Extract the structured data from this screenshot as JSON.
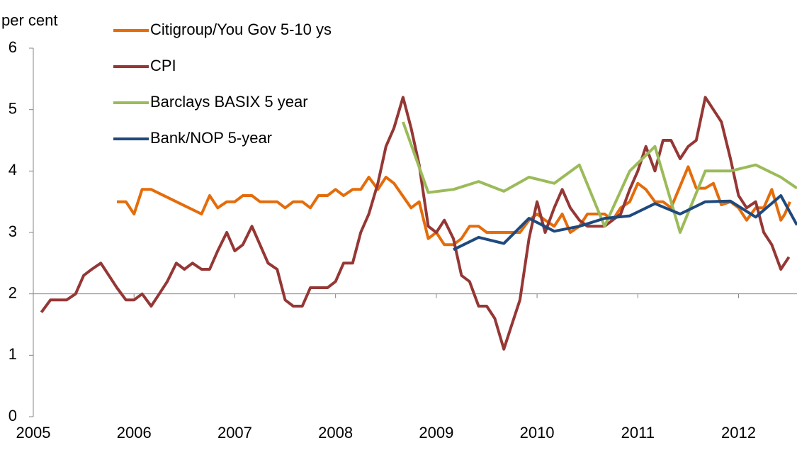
{
  "chart_data": {
    "type": "line",
    "y_label": "per cent",
    "xlim": [
      2005,
      2012.58
    ],
    "xticks": [
      2005,
      2006,
      2007,
      2008,
      2009,
      2010,
      2011,
      2012
    ],
    "ylim": [
      0,
      6
    ],
    "yticks": [
      0,
      1,
      2,
      3,
      4,
      5,
      6
    ],
    "x_axis_crosses": 2,
    "series": [
      {
        "name": "Citigroup/You Gov 5-10 ys",
        "color": "#e46c0a",
        "x": [
          2005.83,
          2005.92,
          2006.0,
          2006.08,
          2006.17,
          2006.67,
          2006.75,
          2006.83,
          2006.92,
          2007.0,
          2007.08,
          2007.17,
          2007.25,
          2007.33,
          2007.42,
          2007.5,
          2007.58,
          2007.67,
          2007.75,
          2007.83,
          2007.92,
          2008.0,
          2008.08,
          2008.17,
          2008.25,
          2008.33,
          2008.42,
          2008.5,
          2008.58,
          2008.75,
          2008.83,
          2008.92,
          2009.0,
          2009.08,
          2009.17,
          2009.25,
          2009.33,
          2009.42,
          2009.5,
          2009.83,
          2009.92,
          2010.0,
          2010.08,
          2010.17,
          2010.25,
          2010.33,
          2010.42,
          2010.5,
          2010.67,
          2010.75,
          2010.83,
          2010.92,
          2011.0,
          2011.08,
          2011.17,
          2011.25,
          2011.33,
          2011.5,
          2011.58,
          2011.67,
          2011.75,
          2011.83,
          2011.92,
          2012.0,
          2012.08,
          2012.17,
          2012.25,
          2012.33,
          2012.42,
          2012.46,
          2012.51
        ],
        "values": [
          3.5,
          3.5,
          3.3,
          3.7,
          3.7,
          3.3,
          3.6,
          3.4,
          3.5,
          3.5,
          3.6,
          3.6,
          3.5,
          3.5,
          3.5,
          3.4,
          3.5,
          3.5,
          3.4,
          3.6,
          3.6,
          3.7,
          3.6,
          3.7,
          3.7,
          3.9,
          3.7,
          3.9,
          3.8,
          3.4,
          3.5,
          2.9,
          3.0,
          2.8,
          2.8,
          2.9,
          3.1,
          3.1,
          3.0,
          3.0,
          3.2,
          3.3,
          3.2,
          3.1,
          3.3,
          3.0,
          3.1,
          3.3,
          3.3,
          3.2,
          3.4,
          3.5,
          3.8,
          3.7,
          3.5,
          3.5,
          3.4,
          4.07,
          3.72,
          3.72,
          3.8,
          3.45,
          3.5,
          3.4,
          3.2,
          3.4,
          3.4,
          3.7,
          3.2,
          3.3,
          3.5
        ]
      },
      {
        "name": "CPI",
        "color": "#953735",
        "x": [
          2005.08,
          2005.17,
          2005.25,
          2005.33,
          2005.42,
          2005.5,
          2005.58,
          2005.67,
          2005.75,
          2005.83,
          2005.92,
          2006.0,
          2006.08,
          2006.17,
          2006.25,
          2006.33,
          2006.42,
          2006.5,
          2006.58,
          2006.67,
          2006.75,
          2006.83,
          2006.92,
          2007.0,
          2007.08,
          2007.17,
          2007.25,
          2007.33,
          2007.42,
          2007.5,
          2007.58,
          2007.67,
          2007.75,
          2007.83,
          2007.92,
          2008.0,
          2008.08,
          2008.17,
          2008.25,
          2008.33,
          2008.42,
          2008.5,
          2008.58,
          2008.67,
          2008.75,
          2008.83,
          2008.92,
          2009.0,
          2009.08,
          2009.17,
          2009.25,
          2009.33,
          2009.42,
          2009.5,
          2009.58,
          2009.67,
          2009.75,
          2009.83,
          2009.92,
          2010.0,
          2010.08,
          2010.17,
          2010.25,
          2010.33,
          2010.42,
          2010.5,
          2010.58,
          2010.67,
          2010.75,
          2010.83,
          2010.92,
          2011.0,
          2011.08,
          2011.17,
          2011.25,
          2011.33,
          2011.42,
          2011.5,
          2011.58,
          2011.67,
          2011.75,
          2011.83,
          2011.92,
          2012.0,
          2012.08,
          2012.17,
          2012.25,
          2012.33,
          2012.42,
          2012.5
        ],
        "values": [
          1.7,
          1.9,
          1.9,
          1.9,
          2.0,
          2.3,
          2.4,
          2.5,
          2.3,
          2.1,
          1.9,
          1.9,
          2.0,
          1.8,
          2.0,
          2.2,
          2.5,
          2.4,
          2.5,
          2.4,
          2.4,
          2.7,
          3.0,
          2.7,
          2.8,
          3.1,
          2.8,
          2.5,
          2.4,
          1.9,
          1.8,
          1.8,
          2.1,
          2.1,
          2.1,
          2.2,
          2.5,
          2.5,
          3.0,
          3.3,
          3.8,
          4.4,
          4.7,
          5.2,
          4.7,
          4.1,
          3.1,
          3.0,
          3.2,
          2.9,
          2.3,
          2.2,
          1.8,
          1.8,
          1.6,
          1.1,
          1.5,
          1.9,
          2.9,
          3.5,
          3.0,
          3.4,
          3.7,
          3.4,
          3.2,
          3.1,
          3.1,
          3.1,
          3.2,
          3.3,
          3.7,
          4.0,
          4.4,
          4.0,
          4.5,
          4.5,
          4.2,
          4.4,
          4.5,
          5.2,
          5.0,
          4.8,
          4.2,
          3.6,
          3.4,
          3.5,
          3.0,
          2.8,
          2.4,
          2.6
        ]
      },
      {
        "name": "Barclays BASIX 5 year",
        "color": "#9bbb59",
        "x": [
          2008.67,
          2008.92,
          2009.17,
          2009.42,
          2009.67,
          2009.92,
          2010.17,
          2010.42,
          2010.67,
          2010.92,
          2011.17,
          2011.42,
          2011.67,
          2011.92,
          2012.17,
          2012.42,
          2012.58
        ],
        "values": [
          4.8,
          3.65,
          3.7,
          3.83,
          3.67,
          3.9,
          3.8,
          4.1,
          3.1,
          4.0,
          4.4,
          3.0,
          4.0,
          4.0,
          4.1,
          3.9,
          3.72
        ]
      },
      {
        "name": "Bank/NOP 5-year",
        "color": "#1f497d",
        "x": [
          2009.17,
          2009.42,
          2009.67,
          2009.92,
          2010.17,
          2010.42,
          2010.67,
          2010.92,
          2011.17,
          2011.42,
          2011.67,
          2011.92,
          2012.17,
          2012.42,
          2012.58
        ],
        "values": [
          2.72,
          2.92,
          2.82,
          3.23,
          3.02,
          3.1,
          3.23,
          3.27,
          3.47,
          3.3,
          3.5,
          3.51,
          3.25,
          3.6,
          3.12
        ]
      }
    ]
  }
}
